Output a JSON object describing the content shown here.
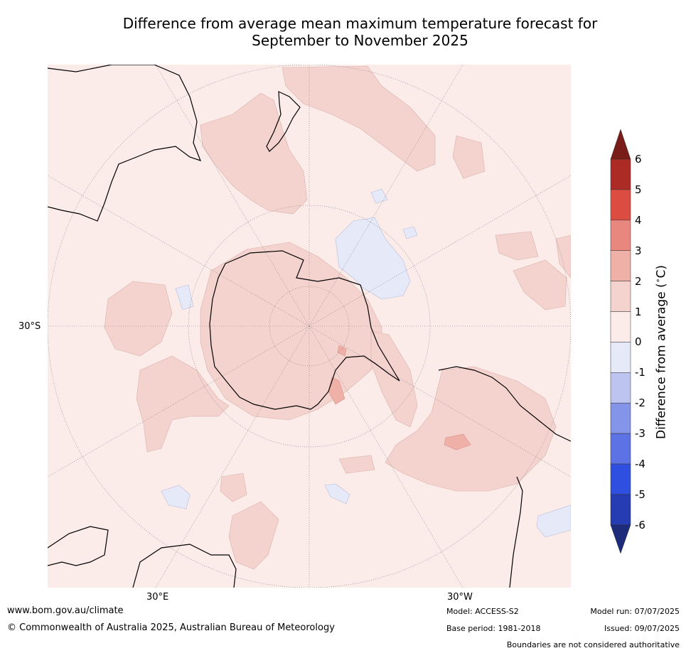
{
  "title": {
    "line1": "Difference from average mean maximum temperature forecast for",
    "line2": "September to November 2025"
  },
  "map": {
    "projection": "south-polar-stereographic",
    "labels": {
      "lat_30s": "30°S",
      "lon_30e": "30°E",
      "lon_30w": "30°W"
    }
  },
  "colorbar": {
    "label": "Difference from average (°C)",
    "label_text": "Difference from average (",
    "label_unit": "C)",
    "ticks": [
      "6",
      "5",
      "4",
      "3",
      "2",
      "1",
      "0",
      "-1",
      "-2",
      "-3",
      "-4",
      "-5",
      "-6"
    ],
    "bins": [
      {
        "range": "> 6",
        "color": "#7a1c17"
      },
      {
        "range": "5 to 6",
        "color": "#ac2b25"
      },
      {
        "range": "4 to 5",
        "color": "#dc4c41"
      },
      {
        "range": "3 to 4",
        "color": "#e8877e"
      },
      {
        "range": "2 to 3",
        "color": "#efb0a8"
      },
      {
        "range": "1 to 2",
        "color": "#f4d3cf"
      },
      {
        "range": "0 to 1",
        "color": "#fbebe9"
      },
      {
        "range": "-1 to 0",
        "color": "#e6e9f8"
      },
      {
        "range": "-2 to -1",
        "color": "#bcc4ef"
      },
      {
        "range": "-3 to -2",
        "color": "#8494e8"
      },
      {
        "range": "-4 to -3",
        "color": "#5c72e5"
      },
      {
        "range": "-5 to -4",
        "color": "#2f4fe0"
      },
      {
        "range": "-6 to -5",
        "color": "#263cb2"
      },
      {
        "range": "< -6",
        "color": "#1c2b7a"
      }
    ]
  },
  "footer": {
    "url": "www.bom.gov.au/climate",
    "copyright": "© Commonwealth of Australia 2025, Australian Bureau of Meteorology",
    "model": "Model: ACCESS-S2",
    "base_period": "Base period: 1981-2018",
    "model_run": "Model run: 07/07/2025",
    "issued": "Issued: 09/07/2025",
    "disclaimer": "Boundaries are not considered authoritative"
  }
}
